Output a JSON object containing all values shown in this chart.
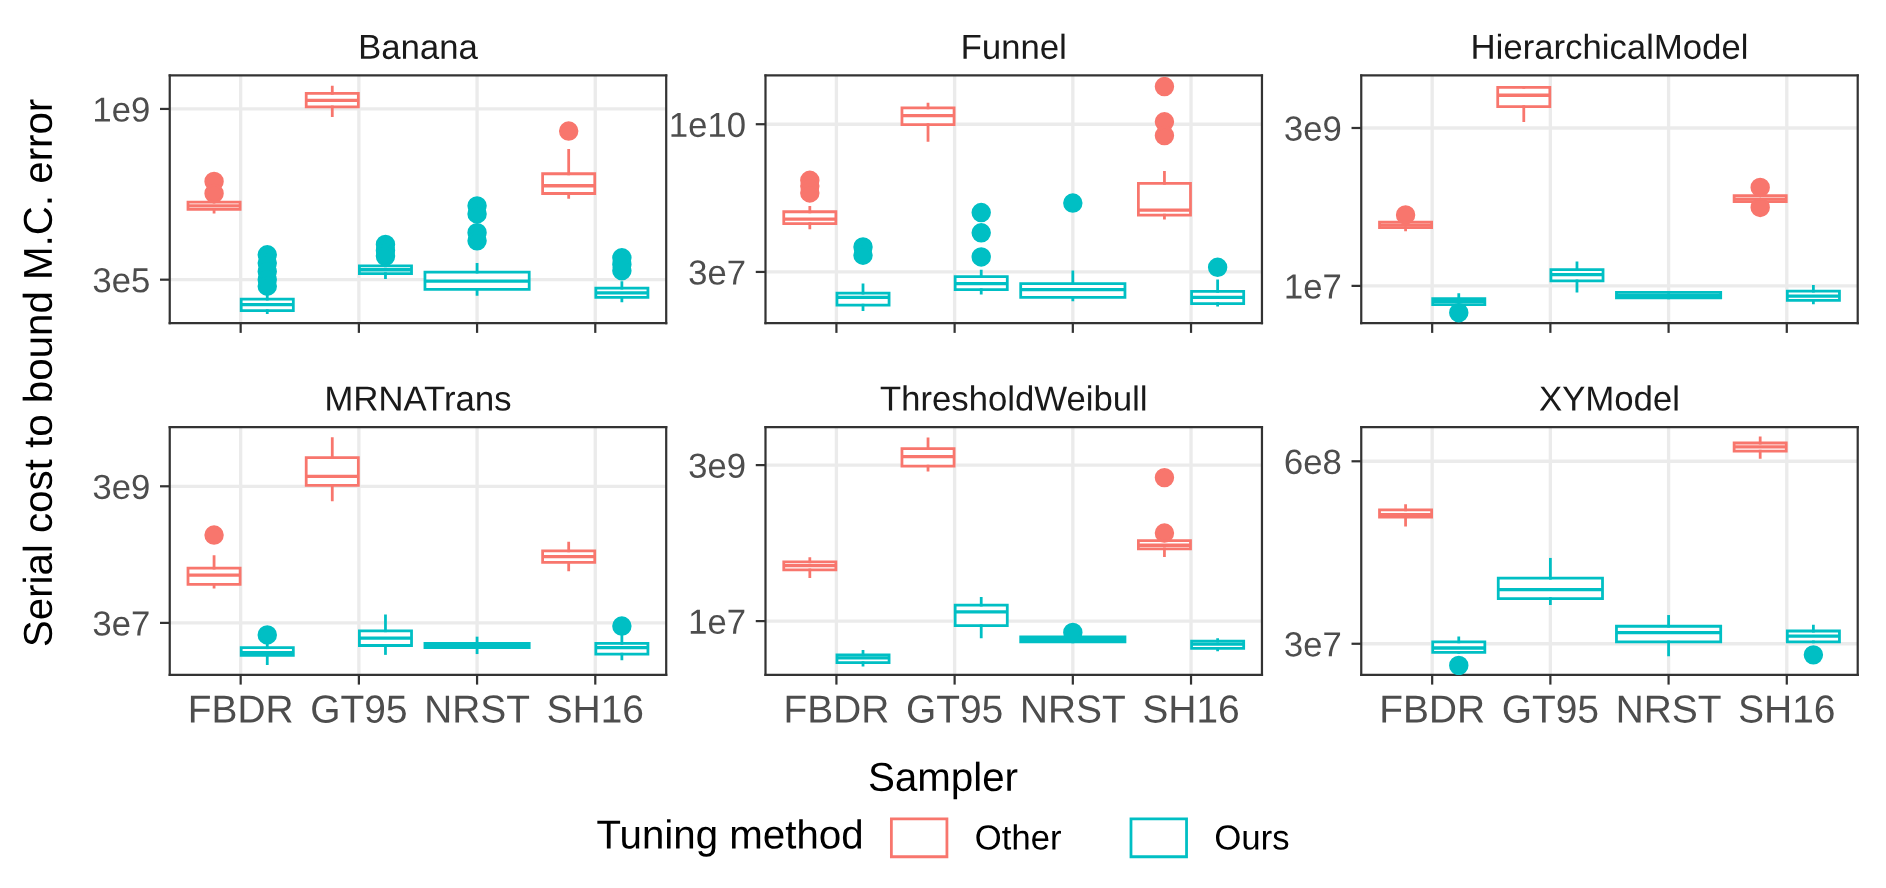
{
  "chart_data": [
    {
      "type": "box",
      "title": "Banana",
      "ylabel": "Serial cost to bound M.C. error",
      "xlabel": "Sampler",
      "legend": "bottom",
      "legend_title": "Tuning method",
      "categories": [
        "FBDR",
        "GT95",
        "NRST",
        "SH16"
      ],
      "log": true,
      "grid": true,
      "tick_labels": "y",
      "ylim": [
        38000.0,
        4900000000.0
      ],
      "yticks": [
        {
          "value": 300000.0,
          "label": "3e5"
        },
        {
          "value": 1000000000.0,
          "label": "1e9"
        }
      ],
      "series": [
        {
          "name": "Other",
          "color": "#f8766d",
          "boxes": [
            {
              "low": 7400000.0,
              "q1": 8500000.0,
              "median": 10000000.0,
              "q3": 12000000.0,
              "high": 13000000.0,
              "outliers": [
                32000000.0,
                18000000.0
              ]
            },
            {
              "low": 730000000.0,
              "q1": 1100000000.0,
              "median": 1500000000.0,
              "q3": 2100000000.0,
              "high": 2800000000.0
            },
            null,
            {
              "low": 15000000.0,
              "q1": 18000000.0,
              "median": 26000000.0,
              "q3": 46000000.0,
              "high": 140000000.0,
              "outliers": [
                350000000.0
              ]
            }
          ]
        },
        {
          "name": "Ours",
          "color": "#00bfc4",
          "boxes": [
            {
              "low": 63000.0,
              "q1": 69000.0,
              "median": 92000.0,
              "q3": 119000.0,
              "high": 145000.0,
              "outliers": [
                980000.0,
                660000.0,
                440000.0,
                300000.0,
                220000.0
              ]
            },
            {
              "low": 330000.0,
              "q1": 400000.0,
              "median": 480000.0,
              "q3": 580000.0,
              "high": 710000.0,
              "outliers": [
                1600000.0,
                1200000.0,
                910000.0
              ]
            },
            {
              "low": 150000.0,
              "q1": 190000.0,
              "median": 280000.0,
              "q3": 430000.0,
              "high": 620000.0,
              "outliers": [
                10000000.0,
                6800000.0,
                2800000.0,
                1900000.0
              ]
            },
            {
              "low": 110000.0,
              "q1": 130000.0,
              "median": 160000.0,
              "q3": 200000.0,
              "high": 260000.0,
              "outliers": [
                850000.0,
                620000.0,
                460000.0
              ]
            }
          ]
        }
      ]
    },
    {
      "type": "box",
      "title": "Funnel",
      "categories": [
        "FBDR",
        "GT95",
        "NRST",
        "SH16"
      ],
      "log": true,
      "grid": true,
      "tick_labels": "y",
      "ylim": [
        4000000.0,
        68000000000.0
      ],
      "yticks": [
        {
          "value": 30000000.0,
          "label": "3e7"
        },
        {
          "value": 10000000000.0,
          "label": "1e10"
        }
      ],
      "series": [
        {
          "name": "Other",
          "color": "#f8766d",
          "boxes": [
            {
              "low": 170000000.0,
              "q1": 200000000.0,
              "median": 240000000.0,
              "q3": 320000000.0,
              "high": 380000000.0,
              "outliers": [
                1100000000.0,
                880000000.0,
                670000000.0
              ]
            },
            {
              "low": 5300000000.0,
              "q1": 9800000000.0,
              "median": 14000000000.0,
              "q3": 19000000000.0,
              "high": 22000000000.0
            },
            null,
            {
              "low": 250000000.0,
              "q1": 280000000.0,
              "median": 340000000.0,
              "q3": 980000000.0,
              "high": 1500000000.0,
              "outliers": [
                44000000000.0,
                11000000000.0,
                6400000000.0
              ]
            }
          ]
        },
        {
          "name": "Ours",
          "color": "#00bfc4",
          "boxes": [
            {
              "low": 6800000.0,
              "q1": 8100000.0,
              "median": 11000000.0,
              "q3": 13000000.0,
              "high": 18000000.0,
              "outliers": [
                80000000.0,
                58000000.0
              ]
            },
            {
              "low": 13000000.0,
              "q1": 15000000.0,
              "median": 19000000.0,
              "q3": 25000000.0,
              "high": 31000000.0,
              "outliers": [
                310000000.0,
                140000000.0,
                54000000.0
              ]
            },
            {
              "low": 10000000.0,
              "q1": 11000000.0,
              "median": 15000000.0,
              "q3": 19000000.0,
              "high": 30000000.0,
              "outliers": [
                450000000.0
              ]
            },
            {
              "low": 8100000.0,
              "q1": 8600000.0,
              "median": 11000000.0,
              "q3": 14000000.0,
              "high": 21000000.0,
              "outliers": [
                36000000.0
              ]
            }
          ]
        }
      ]
    },
    {
      "type": "box",
      "title": "HierarchicalModel",
      "categories": [
        "FBDR",
        "GT95",
        "NRST",
        "SH16"
      ],
      "log": true,
      "grid": true,
      "tick_labels": "y",
      "ylim": [
        2600000.0,
        20000000000.0
      ],
      "yticks": [
        {
          "value": 10000000.0,
          "label": "1e7"
        },
        {
          "value": 3000000000.0,
          "label": "3e9"
        }
      ],
      "series": [
        {
          "name": "Other",
          "color": "#f8766d",
          "boxes": [
            {
              "low": 76000000.0,
              "q1": 82000000.0,
              "median": 90000000.0,
              "q3": 100000000.0,
              "high": 107000000.0,
              "outliers": [
                130000000.0
              ]
            },
            {
              "low": 3900000000.0,
              "q1": 6500000000.0,
              "median": 9800000000.0,
              "q3": 13000000000.0,
              "high": 13000000000.0
            },
            null,
            {
              "low": 200000000.0,
              "q1": 210000000.0,
              "median": 230000000.0,
              "q3": 260000000.0,
              "high": 270000000.0,
              "outliers": [
                350000000.0,
                170000000.0
              ]
            }
          ]
        },
        {
          "name": "Ours",
          "color": "#00bfc4",
          "boxes": [
            {
              "low": 4700000.0,
              "q1": 5100000.0,
              "median": 5700000.0,
              "q3": 6300000.0,
              "high": 7300000.0,
              "outliers": [
                3800000.0
              ]
            },
            {
              "low": 8300000.0,
              "q1": 12000000.0,
              "median": 15000000.0,
              "q3": 18000000.0,
              "high": 23000000.0
            },
            {
              "low": 6500000.0,
              "q1": 6500000.0,
              "median": 7100000.0,
              "q3": 7900000.0,
              "high": 7900000.0
            },
            {
              "low": 5400000.0,
              "q1": 5900000.0,
              "median": 6900000.0,
              "q3": 8300000.0,
              "high": 9800000.0
            }
          ]
        }
      ]
    },
    {
      "type": "box",
      "title": "MRNATrans",
      "categories": [
        "FBDR",
        "GT95",
        "NRST",
        "SH16"
      ],
      "log": true,
      "grid": true,
      "ylim": [
        5200000.0,
        22000000000.0
      ],
      "yticks": [
        {
          "value": 30000000.0,
          "label": "3e7"
        },
        {
          "value": 3000000000.0,
          "label": "3e9"
        }
      ],
      "series": [
        {
          "name": "Other",
          "color": "#f8766d",
          "boxes": [
            {
              "low": 100000000.0,
              "q1": 110000000.0,
              "median": 150000000.0,
              "q3": 190000000.0,
              "high": 280000000.0,
              "outliers": [
                580000000.0
              ]
            },
            {
              "low": 1900000000.0,
              "q1": 3100000000.0,
              "median": 4200000000.0,
              "q3": 7900000000.0,
              "high": 15000000000.0
            },
            null,
            {
              "low": 180000000.0,
              "q1": 230000000.0,
              "median": 280000000.0,
              "q3": 340000000.0,
              "high": 440000000.0
            }
          ]
        },
        {
          "name": "Ours",
          "color": "#00bfc4",
          "boxes": [
            {
              "low": 7600000.0,
              "q1": 10000000.0,
              "median": 11000000.0,
              "q3": 13000000.0,
              "high": 15000000.0,
              "outliers": [
                20000000.0
              ]
            },
            {
              "low": 10700000.0,
              "q1": 14000000.0,
              "median": 18000000.0,
              "q3": 23000000.0,
              "high": 38000000.0
            },
            {
              "low": 11000000.0,
              "q1": 13000000.0,
              "median": 14000000.0,
              "q3": 15000000.0,
              "high": 18000000.0
            },
            {
              "low": 8900000.0,
              "q1": 10500000.0,
              "median": 13000000.0,
              "q3": 15000000.0,
              "high": 19000000.0,
              "outliers": [
                27000000.0
              ]
            }
          ]
        }
      ]
    },
    {
      "type": "box",
      "title": "ThresholdWeibull",
      "categories": [
        "FBDR",
        "GT95",
        "NRST",
        "SH16"
      ],
      "log": true,
      "grid": true,
      "ylim": [
        1400000.0,
        12000000000.0
      ],
      "yticks": [
        {
          "value": 10000000.0,
          "label": "1e7"
        },
        {
          "value": 3000000000.0,
          "label": "3e9"
        }
      ],
      "series": [
        {
          "name": "Other",
          "color": "#f8766d",
          "boxes": [
            {
              "low": 51000000.0,
              "q1": 65000000.0,
              "median": 76000000.0,
              "q3": 87000000.0,
              "high": 98000000.0
            },
            {
              "low": 2500000000.0,
              "q1": 2900000000.0,
              "median": 4100000000.0,
              "q3": 5500000000.0,
              "high": 7800000000.0
            },
            null,
            {
              "low": 110000000.0,
              "q1": 140000000.0,
              "median": 160000000.0,
              "q3": 190000000.0,
              "high": 190000000.0,
              "outliers": [
                1900000000.0,
                250000000.0
              ]
            }
          ]
        },
        {
          "name": "Ours",
          "color": "#00bfc4",
          "boxes": [
            {
              "low": 2000000.0,
              "q1": 2200000.0,
              "median": 2600000.0,
              "q3": 2900000.0,
              "high": 3300000.0
            },
            {
              "low": 5600000.0,
              "q1": 8500000.0,
              "median": 14000000.0,
              "q3": 18000000.0,
              "high": 23000000.0
            },
            {
              "low": 4700000.0,
              "q1": 4700000.0,
              "median": 5100000.0,
              "q3": 5600000.0,
              "high": 6200000.0,
              "outliers": [
                6600000.0
              ]
            },
            {
              "low": 3500000.0,
              "q1": 3700000.0,
              "median": 4300000.0,
              "q3": 4800000.0,
              "high": 5100000.0
            }
          ]
        }
      ]
    },
    {
      "type": "box",
      "title": "XYModel",
      "categories": [
        "FBDR",
        "GT95",
        "NRST",
        "SH16"
      ],
      "log": true,
      "grid": true,
      "ylim": [
        18000000.0,
        1050000000.0
      ],
      "yticks": [
        {
          "value": 30000000.0,
          "label": "3e7"
        },
        {
          "value": 600000000.0,
          "label": "6e8"
        }
      ],
      "series": [
        {
          "name": "Other",
          "color": "#f8766d",
          "boxes": [
            {
              "low": 210000000.0,
              "q1": 240000000.0,
              "median": 250000000.0,
              "q3": 270000000.0,
              "high": 290000000.0
            },
            null,
            null,
            {
              "low": 640000000.0,
              "q1": 710000000.0,
              "median": 760000000.0,
              "q3": 810000000.0,
              "high": 880000000.0
            }
          ]
        },
        {
          "name": "Ours",
          "color": "#00bfc4",
          "boxes": [
            {
              "low": 26000000.0,
              "q1": 26000000.0,
              "median": 28000000.0,
              "q3": 31000000.0,
              "high": 33000000.0,
              "outliers": [
                21000000.0
              ]
            },
            {
              "low": 58000000.0,
              "q1": 63000000.0,
              "median": 73000000.0,
              "q3": 88000000.0,
              "high": 120000000.0
            },
            {
              "low": 25000000.0,
              "q1": 31000000.0,
              "median": 36000000.0,
              "q3": 40000000.0,
              "high": 47000000.0
            },
            {
              "low": 31000000.0,
              "q1": 31000000.0,
              "median": 34000000.0,
              "q3": 37000000.0,
              "high": 40000000.0,
              "outliers": [
                25000000.0
              ]
            }
          ]
        }
      ]
    }
  ]
}
